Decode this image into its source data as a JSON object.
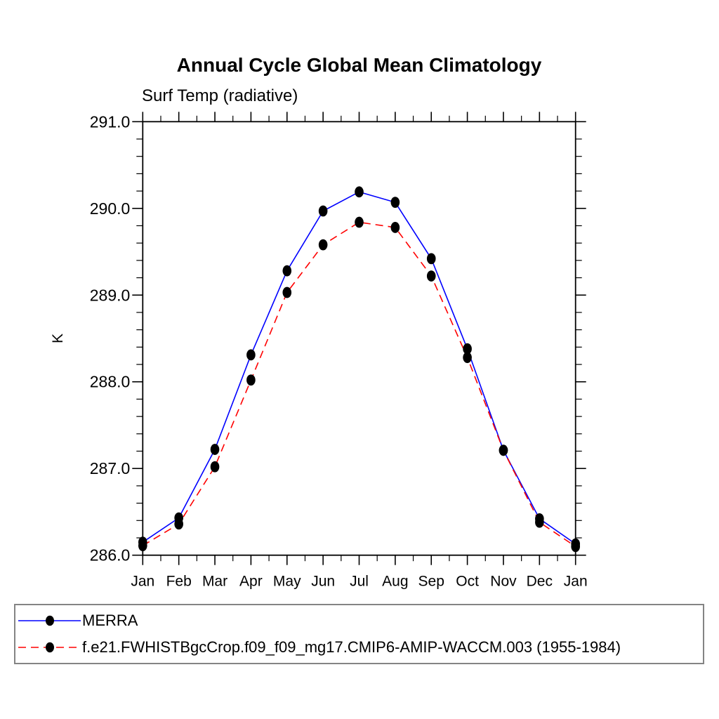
{
  "title": "Annual Cycle Global Mean Climatology",
  "subtitle": "Surf Temp (radiative)",
  "ylabel": "K",
  "legend": {
    "position": "bottom",
    "border_color": "#848484",
    "entries": [
      {
        "label": "MERRA",
        "color": "#0000ff",
        "line_style": "solid",
        "marker": "black-filled-circle"
      },
      {
        "label": "f.e21.FWHISTBgcCrop.f09_f09_mg17.CMIP6-AMIP-WACCM.003 (1955-1984)",
        "color": "#ff0000",
        "line_style": "dashed",
        "marker": "black-filled-circle"
      }
    ]
  },
  "chart_data": {
    "type": "line",
    "title": "Annual Cycle Global Mean Climatology",
    "subtitle": "Surf Temp (radiative)",
    "xlabel": "",
    "ylabel": "K",
    "categories": [
      "Jan",
      "Feb",
      "Mar",
      "Apr",
      "May",
      "Jun",
      "Jul",
      "Aug",
      "Sep",
      "Oct",
      "Nov",
      "Dec",
      "Jan"
    ],
    "ylim": [
      286.0,
      291.0
    ],
    "yticks": [
      286.0,
      287.0,
      288.0,
      289.0,
      290.0,
      291.0
    ],
    "ytick_format": "one-decimal",
    "y_minor_step": 0.2,
    "x_minor_step": 0.5,
    "grid": false,
    "frame": "box-with-outward-ticks",
    "marker_color": "#000000",
    "legend_position": "bottom",
    "series": [
      {
        "name": "MERRA",
        "color": "#0000ff",
        "line_style": "solid",
        "marker": "filled-circle",
        "values": [
          286.15,
          286.43,
          287.22,
          288.31,
          289.28,
          289.97,
          290.19,
          290.07,
          289.42,
          288.38,
          287.21,
          286.42,
          286.13
        ]
      },
      {
        "name": "f.e21.FWHISTBgcCrop.f09_f09_mg17.CMIP6-AMIP-WACCM.003 (1955-1984)",
        "color": "#ff0000",
        "line_style": "dashed",
        "marker": "filled-circle",
        "values": [
          286.11,
          286.36,
          287.02,
          288.02,
          289.03,
          289.58,
          289.84,
          289.78,
          289.22,
          288.28,
          287.21,
          286.38,
          286.1
        ]
      }
    ]
  }
}
